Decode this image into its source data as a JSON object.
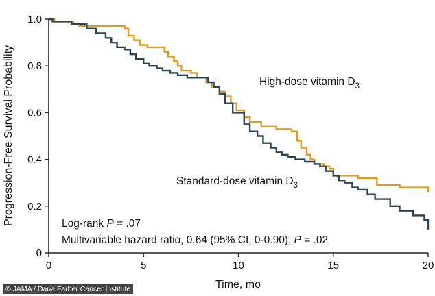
{
  "credit": "© JAMA / Dana Farber Cancer Institute",
  "chart_data": {
    "type": "line",
    "step": true,
    "xlabel": "Time, mo",
    "ylabel": "Progression-Free Survival Probability",
    "xlim": [
      0,
      20
    ],
    "ylim": [
      0,
      1.0
    ],
    "xticks": [
      0,
      5,
      10,
      15,
      20
    ],
    "yticks": [
      0,
      0.2,
      0.4,
      0.6,
      0.8,
      1.0
    ],
    "ytick_labels": [
      "0",
      "0.2",
      "0.4",
      "0.6",
      "0.8",
      "1.0"
    ],
    "grid": false,
    "series": [
      {
        "name": "High-dose vitamin D3",
        "label_main": "High-dose vitamin D",
        "label_sub": "3",
        "color": "#E39A1D",
        "x": [
          0,
          0.3,
          1.3,
          1.6,
          4.0,
          4.2,
          4.5,
          4.8,
          5.2,
          6.1,
          6.3,
          6.6,
          6.8,
          7.0,
          7.5,
          7.8,
          8.3,
          8.6,
          9.0,
          9.3,
          9.6,
          9.9,
          10.3,
          10.6,
          11.2,
          12.0,
          12.8,
          13.1,
          13.3,
          13.6,
          13.8,
          14.0,
          14.5,
          14.8,
          15.0,
          16.3,
          17.3,
          18.5,
          20.0
        ],
        "y": [
          1.0,
          0.99,
          0.98,
          0.97,
          0.96,
          0.93,
          0.91,
          0.89,
          0.88,
          0.86,
          0.84,
          0.82,
          0.8,
          0.78,
          0.77,
          0.75,
          0.73,
          0.71,
          0.69,
          0.67,
          0.64,
          0.61,
          0.58,
          0.56,
          0.54,
          0.53,
          0.52,
          0.48,
          0.45,
          0.42,
          0.4,
          0.38,
          0.37,
          0.36,
          0.33,
          0.32,
          0.29,
          0.28,
          0.26
        ]
      },
      {
        "name": "Standard-dose vitamin D3",
        "label_main": "Standard-dose vitamin D",
        "label_sub": "3",
        "color": "#2B4756",
        "x": [
          0,
          0.2,
          1.2,
          2.0,
          2.5,
          3.0,
          3.3,
          3.6,
          4.0,
          4.3,
          4.6,
          5.0,
          5.3,
          5.7,
          6.0,
          6.4,
          6.8,
          7.0,
          7.3,
          8.4,
          8.7,
          9.0,
          9.3,
          9.7,
          10.3,
          10.6,
          11.0,
          11.3,
          11.7,
          12.0,
          12.3,
          12.6,
          13.0,
          13.5,
          14.0,
          14.3,
          14.6,
          15.0,
          15.3,
          15.6,
          16.0,
          16.3,
          16.8,
          17.2,
          18.0,
          18.5,
          19.2,
          19.8,
          20.0
        ],
        "y": [
          1.0,
          0.99,
          0.98,
          0.96,
          0.94,
          0.92,
          0.9,
          0.88,
          0.87,
          0.85,
          0.83,
          0.81,
          0.8,
          0.79,
          0.78,
          0.77,
          0.76,
          0.76,
          0.75,
          0.73,
          0.71,
          0.68,
          0.64,
          0.6,
          0.55,
          0.52,
          0.5,
          0.47,
          0.45,
          0.43,
          0.42,
          0.41,
          0.4,
          0.39,
          0.38,
          0.37,
          0.35,
          0.33,
          0.31,
          0.3,
          0.28,
          0.27,
          0.25,
          0.23,
          0.2,
          0.18,
          0.16,
          0.14,
          0.1
        ]
      }
    ],
    "annotations": {
      "logrank_prefix": "Log-rank ",
      "logrank_p": "P",
      "logrank_value": " = .07",
      "hr_prefix": "Multivariable hazard ratio, ",
      "hr_value": "0.64 (95% CI, 0-0.90); ",
      "hr_p": "P",
      "hr_pvalue": " = .02"
    }
  }
}
